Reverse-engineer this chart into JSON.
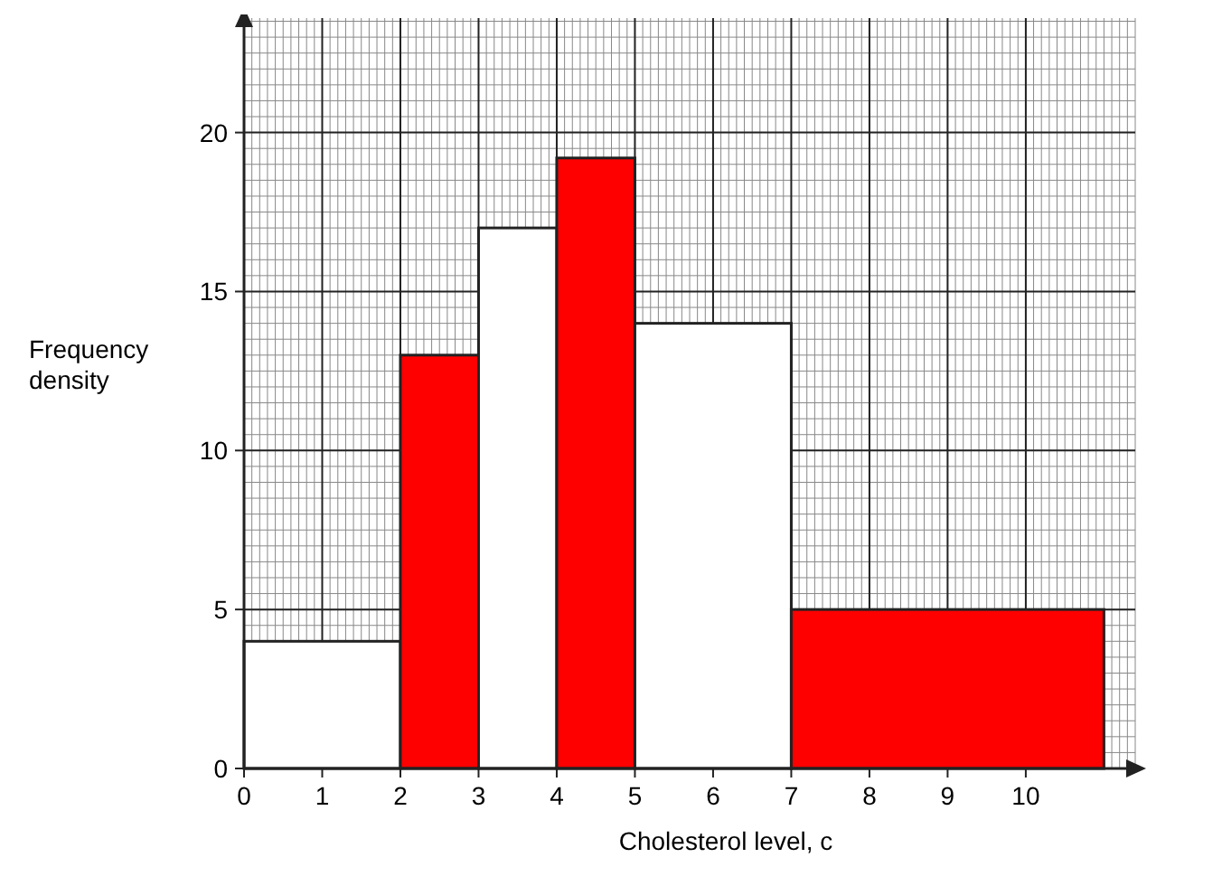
{
  "chart_data": {
    "type": "histogram",
    "xlabel": "Cholesterol level, c",
    "ylabel": "Frequency density",
    "bins": [
      0,
      2,
      3,
      4,
      5,
      7,
      11
    ],
    "values": [
      4,
      13,
      17,
      19.2,
      14,
      5
    ],
    "colors": [
      "#ffffff",
      "#ff0000",
      "#ffffff",
      "#ff0000",
      "#ffffff",
      "#ff0000"
    ],
    "xlim": [
      0,
      11.4
    ],
    "xticks": [
      0,
      1,
      2,
      3,
      4,
      5,
      6,
      7,
      8,
      9,
      10
    ],
    "ylim": [
      0,
      23.6
    ],
    "yticks": [
      0,
      5,
      10,
      15,
      20
    ],
    "grid": true
  }
}
